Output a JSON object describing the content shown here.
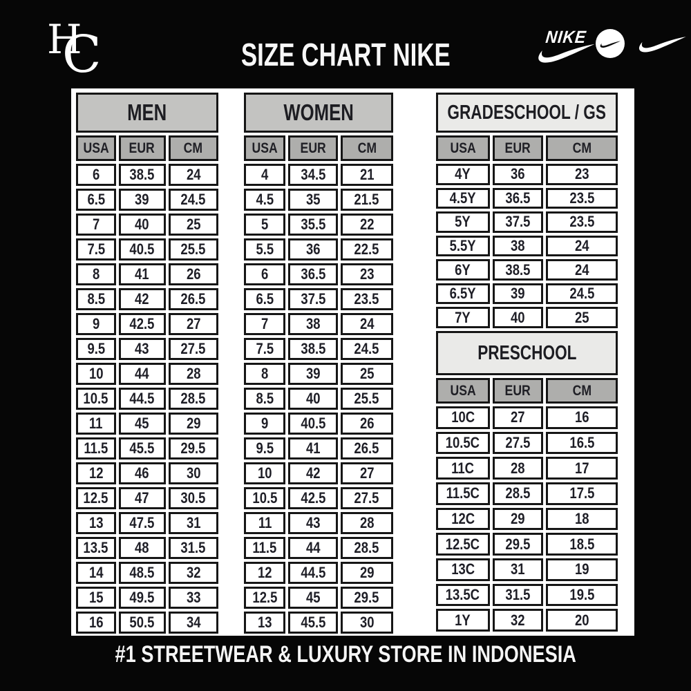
{
  "header": {
    "monogram": {
      "letter_h": "H",
      "letter_c": "C"
    },
    "title": "SIZE CHART NIKE",
    "nike_wordmark": "NIKE"
  },
  "footer": {
    "text": "#1 STREETWEAR & LUXURY STORE IN INDONESIA"
  },
  "colors": {
    "background": "#060606",
    "panel": "#ffffff",
    "section_header_gray": "#c3c3c1",
    "section_header_light": "#eaeae8",
    "column_header_gray": "#aeaeac",
    "cell_border": "#161616",
    "text_dark": "#1e1e26",
    "text_light": "#f5f5f5"
  },
  "tables": {
    "men": {
      "title": "MEN",
      "columns": [
        "USA",
        "EUR",
        "CM"
      ],
      "rows": [
        [
          "6",
          "38.5",
          "24"
        ],
        [
          "6.5",
          "39",
          "24.5"
        ],
        [
          "7",
          "40",
          "25"
        ],
        [
          "7.5",
          "40.5",
          "25.5"
        ],
        [
          "8",
          "41",
          "26"
        ],
        [
          "8.5",
          "42",
          "26.5"
        ],
        [
          "9",
          "42.5",
          "27"
        ],
        [
          "9.5",
          "43",
          "27.5"
        ],
        [
          "10",
          "44",
          "28"
        ],
        [
          "10.5",
          "44.5",
          "28.5"
        ],
        [
          "11",
          "45",
          "29"
        ],
        [
          "11.5",
          "45.5",
          "29.5"
        ],
        [
          "12",
          "46",
          "30"
        ],
        [
          "12.5",
          "47",
          "30.5"
        ],
        [
          "13",
          "47.5",
          "31"
        ],
        [
          "13.5",
          "48",
          "31.5"
        ],
        [
          "14",
          "48.5",
          "32"
        ],
        [
          "15",
          "49.5",
          "33"
        ],
        [
          "16",
          "50.5",
          "34"
        ]
      ]
    },
    "women": {
      "title": "WOMEN",
      "columns": [
        "USA",
        "EUR",
        "CM"
      ],
      "rows": [
        [
          "4",
          "34.5",
          "21"
        ],
        [
          "4.5",
          "35",
          "21.5"
        ],
        [
          "5",
          "35.5",
          "22"
        ],
        [
          "5.5",
          "36",
          "22.5"
        ],
        [
          "6",
          "36.5",
          "23"
        ],
        [
          "6.5",
          "37.5",
          "23.5"
        ],
        [
          "7",
          "38",
          "24"
        ],
        [
          "7.5",
          "38.5",
          "24.5"
        ],
        [
          "8",
          "39",
          "25"
        ],
        [
          "8.5",
          "40",
          "25.5"
        ],
        [
          "9",
          "40.5",
          "26"
        ],
        [
          "9.5",
          "41",
          "26.5"
        ],
        [
          "10",
          "42",
          "27"
        ],
        [
          "10.5",
          "42.5",
          "27.5"
        ],
        [
          "11",
          "43",
          "28"
        ],
        [
          "11.5",
          "44",
          "28.5"
        ],
        [
          "12",
          "44.5",
          "29"
        ],
        [
          "12.5",
          "45",
          "29.5"
        ],
        [
          "13",
          "45.5",
          "30"
        ]
      ]
    },
    "gradeschool": {
      "title": "GRADESCHOOL / GS",
      "columns": [
        "USA",
        "EUR",
        "CM"
      ],
      "rows": [
        [
          "4Y",
          "36",
          "23"
        ],
        [
          "4.5Y",
          "36.5",
          "23.5"
        ],
        [
          "5Y",
          "37.5",
          "23.5"
        ],
        [
          "5.5Y",
          "38",
          "24"
        ],
        [
          "6Y",
          "38.5",
          "24"
        ],
        [
          "6.5Y",
          "39",
          "24.5"
        ],
        [
          "7Y",
          "40",
          "25"
        ]
      ]
    },
    "preschool": {
      "title": "PRESCHOOL",
      "columns": [
        "USA",
        "EUR",
        "CM"
      ],
      "rows": [
        [
          "10C",
          "27",
          "16"
        ],
        [
          "10.5C",
          "27.5",
          "16.5"
        ],
        [
          "11C",
          "28",
          "17"
        ],
        [
          "11.5C",
          "28.5",
          "17.5"
        ],
        [
          "12C",
          "29",
          "18"
        ],
        [
          "12.5C",
          "29.5",
          "18.5"
        ],
        [
          "13C",
          "31",
          "19"
        ],
        [
          "13.5C",
          "31.5",
          "19.5"
        ],
        [
          "1Y",
          "32",
          "20"
        ]
      ]
    }
  }
}
